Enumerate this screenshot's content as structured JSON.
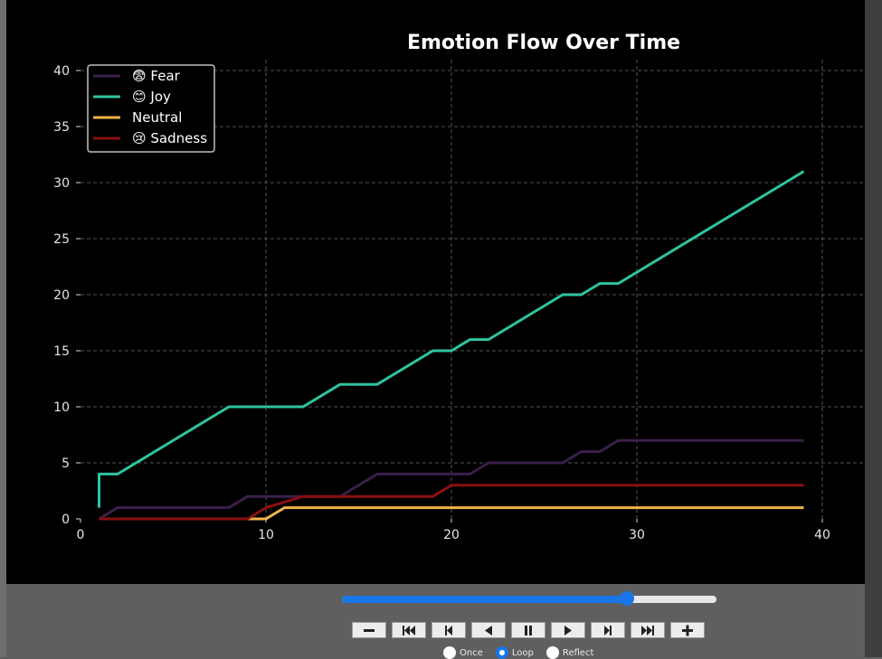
{
  "chart_data": {
    "type": "line",
    "title": "Emotion Flow Over Time",
    "xlabel": "",
    "ylabel": "",
    "xlim": [
      0,
      41.5
    ],
    "ylim": [
      0,
      40.5
    ],
    "xticks": [
      0,
      10,
      20,
      30,
      40
    ],
    "yticks": [
      0,
      5,
      10,
      15,
      20,
      25,
      30,
      35,
      40
    ],
    "grid": true,
    "legend_position": "upper-left",
    "series": [
      {
        "name": "😨 Fear",
        "color": "#3a1f4a",
        "x": [
          1,
          2,
          8,
          9,
          12,
          14,
          16,
          21,
          22,
          26,
          27,
          28,
          29,
          39
        ],
        "y": [
          0,
          1,
          1,
          2,
          2,
          2,
          4,
          4,
          5,
          5,
          6,
          6,
          7,
          7
        ]
      },
      {
        "name": "😊 Joy",
        "color": "#2ec4a0",
        "x": [
          1,
          1,
          2,
          8,
          12,
          14,
          16,
          19,
          20,
          21,
          22,
          26,
          27,
          28,
          29,
          39
        ],
        "y": [
          1,
          4,
          4,
          10,
          10,
          12,
          12,
          15,
          15,
          16,
          16,
          20,
          20,
          21,
          21,
          31
        ]
      },
      {
        "name": "Neutral",
        "color": "#f0b449",
        "x": [
          1,
          10,
          11,
          39
        ],
        "y": [
          0,
          0,
          1,
          1
        ]
      },
      {
        "name": "😢 Sadness",
        "color": "#8b1010",
        "x": [
          1,
          9,
          10,
          12,
          19,
          20,
          39
        ],
        "y": [
          0,
          0,
          1,
          2,
          2,
          3,
          3
        ]
      }
    ]
  },
  "controls": {
    "slider_value": 0.76,
    "buttons": [
      {
        "name": "zoom-out-button",
        "icon": "minus-icon"
      },
      {
        "name": "first-frame-button",
        "icon": "skip-start-icon"
      },
      {
        "name": "step-back-button",
        "icon": "step-back-icon"
      },
      {
        "name": "play-reverse-button",
        "icon": "play-reverse-icon"
      },
      {
        "name": "pause-button",
        "icon": "pause-icon"
      },
      {
        "name": "play-button",
        "icon": "play-icon"
      },
      {
        "name": "step-forward-button",
        "icon": "step-forward-icon"
      },
      {
        "name": "last-frame-button",
        "icon": "skip-end-icon"
      },
      {
        "name": "zoom-in-button",
        "icon": "plus-icon"
      }
    ],
    "radios": [
      {
        "label": "Once",
        "checked": false
      },
      {
        "label": "Loop",
        "checked": true
      },
      {
        "label": "Reflect",
        "checked": false
      }
    ]
  }
}
